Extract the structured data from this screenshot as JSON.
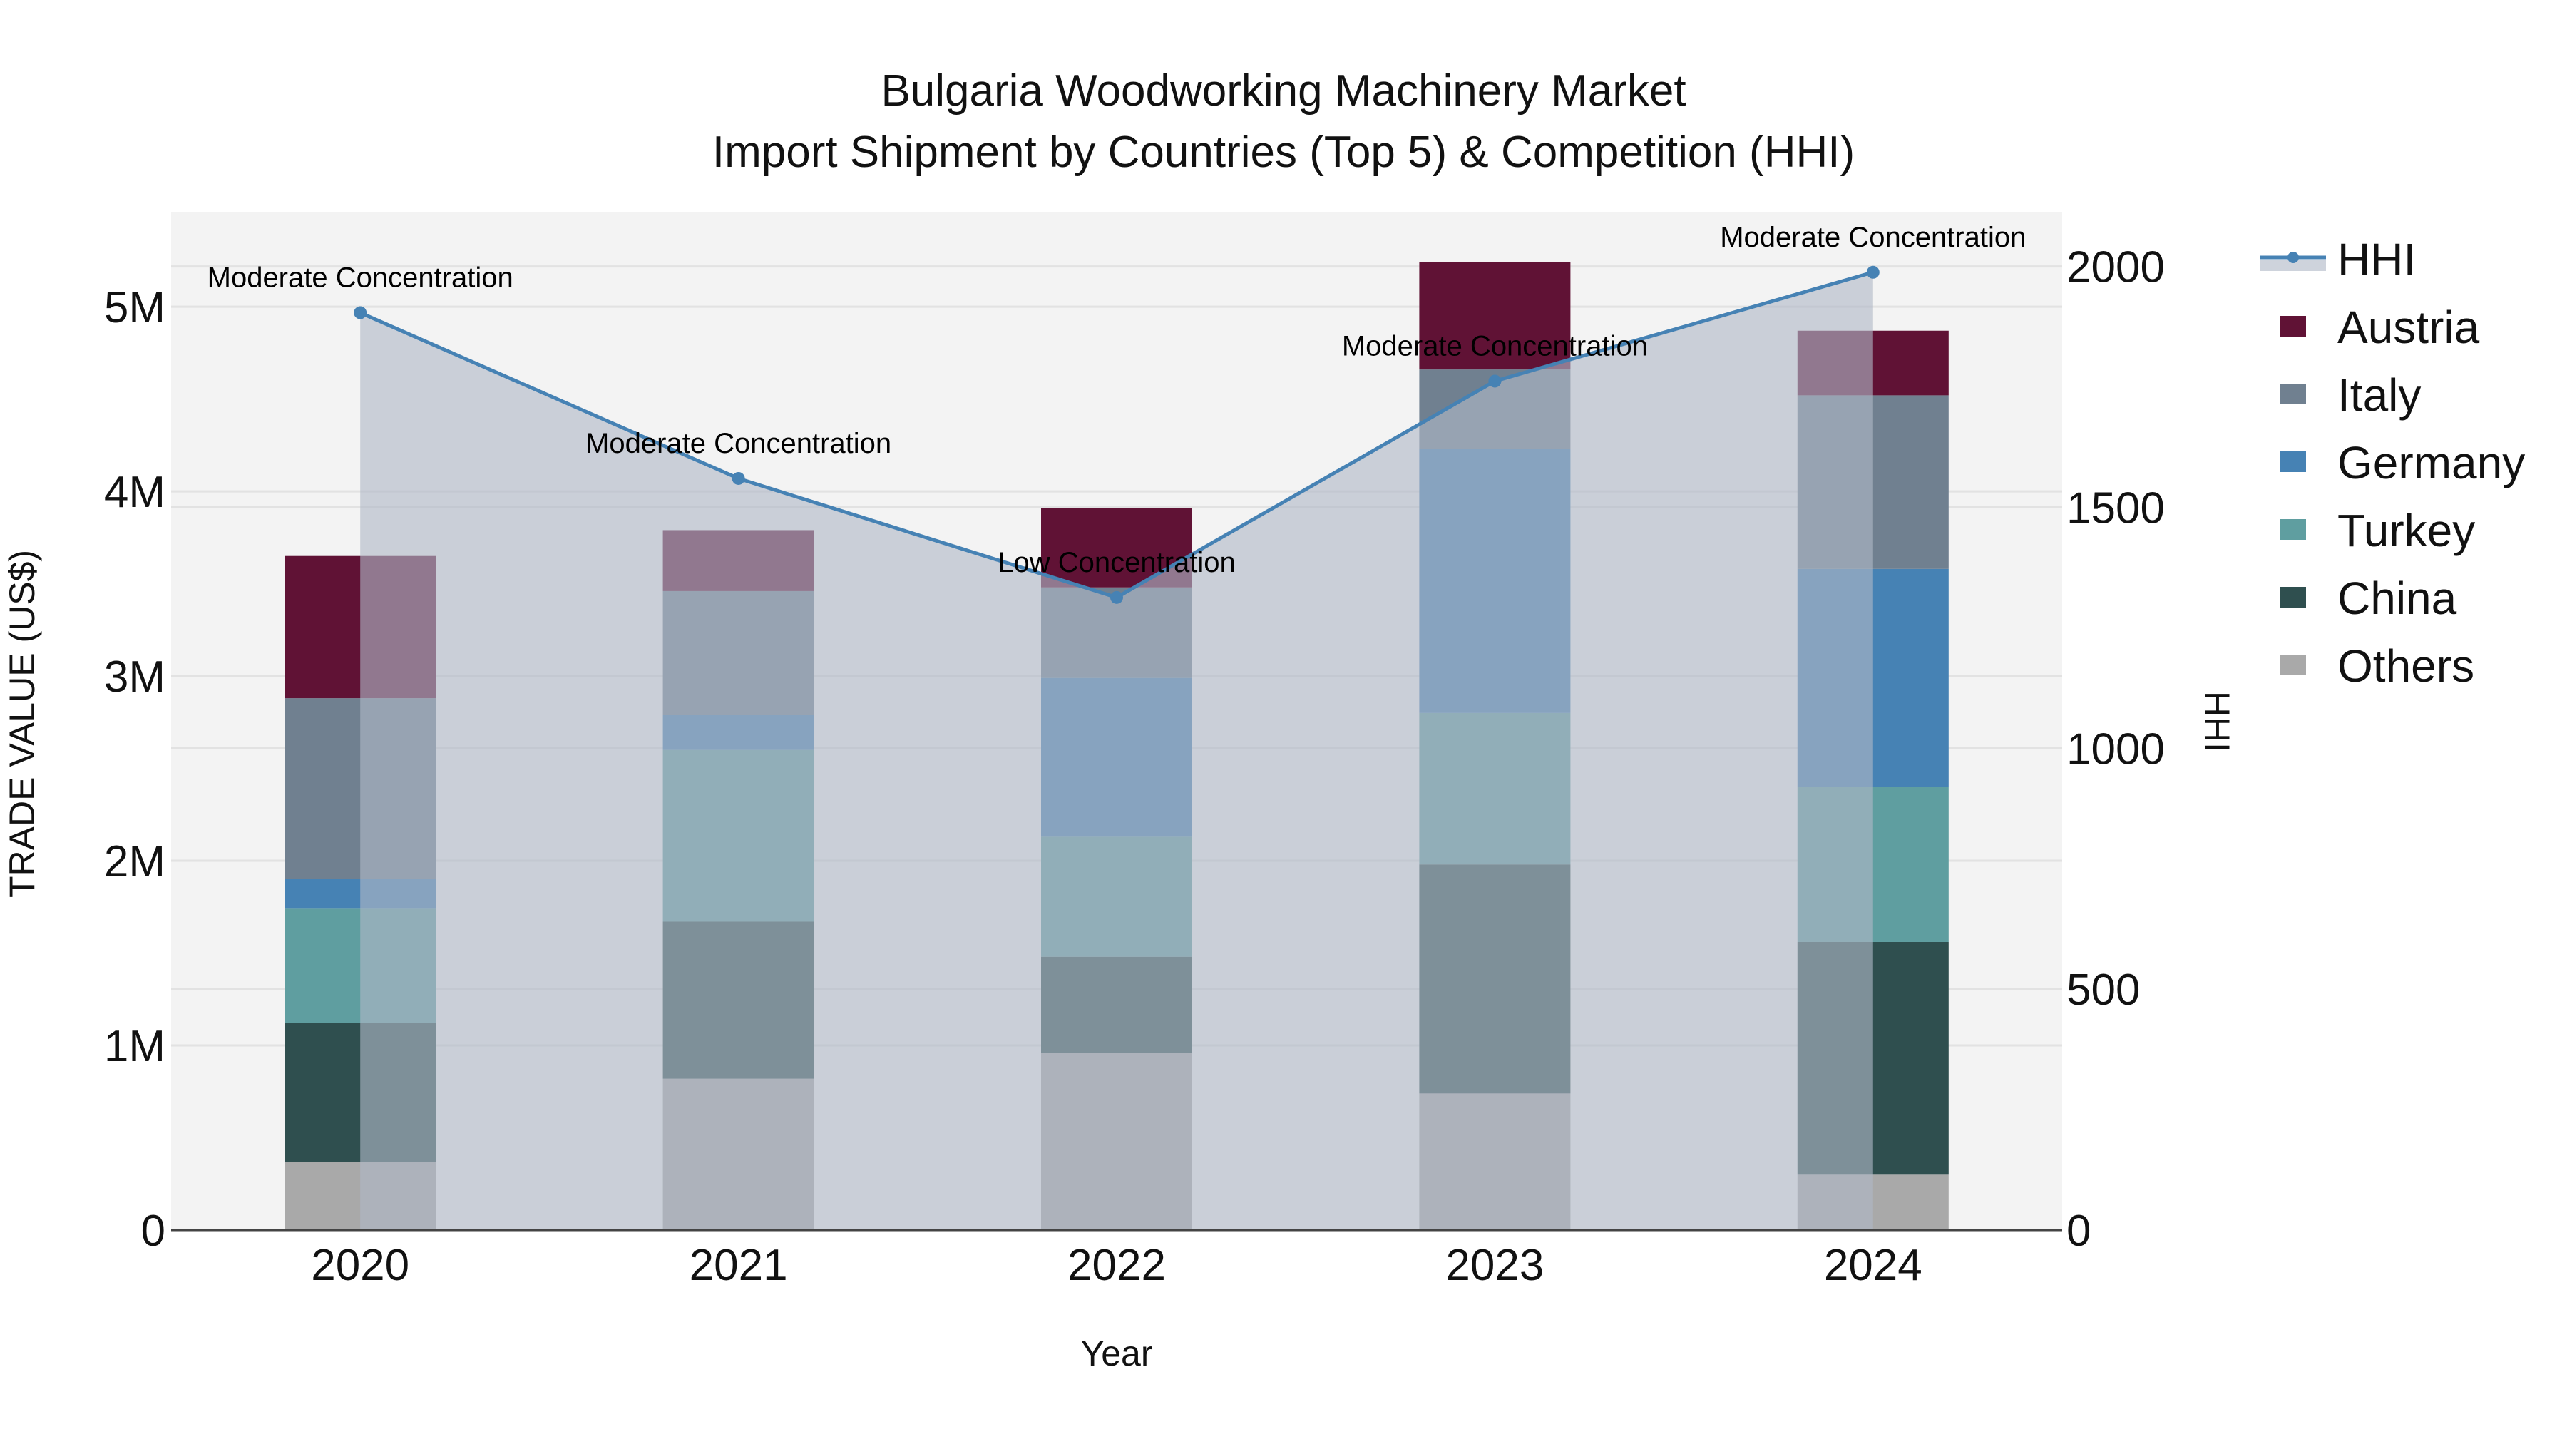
{
  "chart_data": {
    "type": "bar",
    "subtype": "stacked bar with line + area overlay (secondary axis)",
    "title": "Bulgaria Woodworking Machinery Market",
    "subtitle": "Import Shipment by Countries (Top 5) & Competition (HHI)",
    "xlabel": "Year",
    "ylabel": "TRADE VALUE (US$)",
    "y2label": "HHI",
    "categories": [
      "2020",
      "2021",
      "2022",
      "2023",
      "2024"
    ],
    "ylim": [
      0,
      5510000
    ],
    "y_ticks": [
      0,
      1000000,
      2000000,
      3000000,
      4000000,
      5000000
    ],
    "y_tick_labels": [
      "0",
      "1M",
      "2M",
      "3M",
      "4M",
      "5M"
    ],
    "y2lim": [
      0,
      2112
    ],
    "y2_ticks": [
      0,
      500,
      1000,
      1500,
      2000
    ],
    "y2_tick_labels": [
      "0",
      "500",
      "1000",
      "1500",
      "2000"
    ],
    "grid": true,
    "legend_position": "right",
    "series": [
      {
        "name": "Others",
        "color": "#a9a9a9",
        "values": [
          370000,
          820000,
          960000,
          740000,
          300000
        ]
      },
      {
        "name": "China",
        "color": "#2f4f4f",
        "values": [
          750000,
          850000,
          520000,
          1240000,
          1260000
        ]
      },
      {
        "name": "Turkey",
        "color": "#5f9ea0",
        "values": [
          620000,
          930000,
          650000,
          820000,
          840000
        ]
      },
      {
        "name": "Germany",
        "color": "#4682b4",
        "values": [
          160000,
          190000,
          860000,
          1430000,
          1180000
        ]
      },
      {
        "name": "Italy",
        "color": "#708090",
        "values": [
          980000,
          670000,
          490000,
          430000,
          940000
        ]
      },
      {
        "name": "Austria",
        "color": "#601235",
        "values": [
          770000,
          330000,
          430000,
          580000,
          350000
        ]
      }
    ],
    "line_series": {
      "name": "HHI",
      "axis": "y2",
      "color": "#4682b4",
      "fill_color": "rgba(176,184,198,0.62)",
      "values": [
        1904,
        1560,
        1313,
        1762,
        1988
      ],
      "annotations": [
        "Moderate Concentration",
        "Moderate Concentration",
        "Low Concentration",
        "Moderate Concentration",
        "Moderate Concentration"
      ]
    },
    "legend": [
      "HHI",
      "Austria",
      "Italy",
      "Germany",
      "Turkey",
      "China",
      "Others"
    ]
  },
  "colors": {
    "plot_background": "#f3f3f3",
    "paper_background": "#ffffff",
    "gridline": "#e2e2e2",
    "axis_line": "#444444",
    "text": "#111111"
  }
}
